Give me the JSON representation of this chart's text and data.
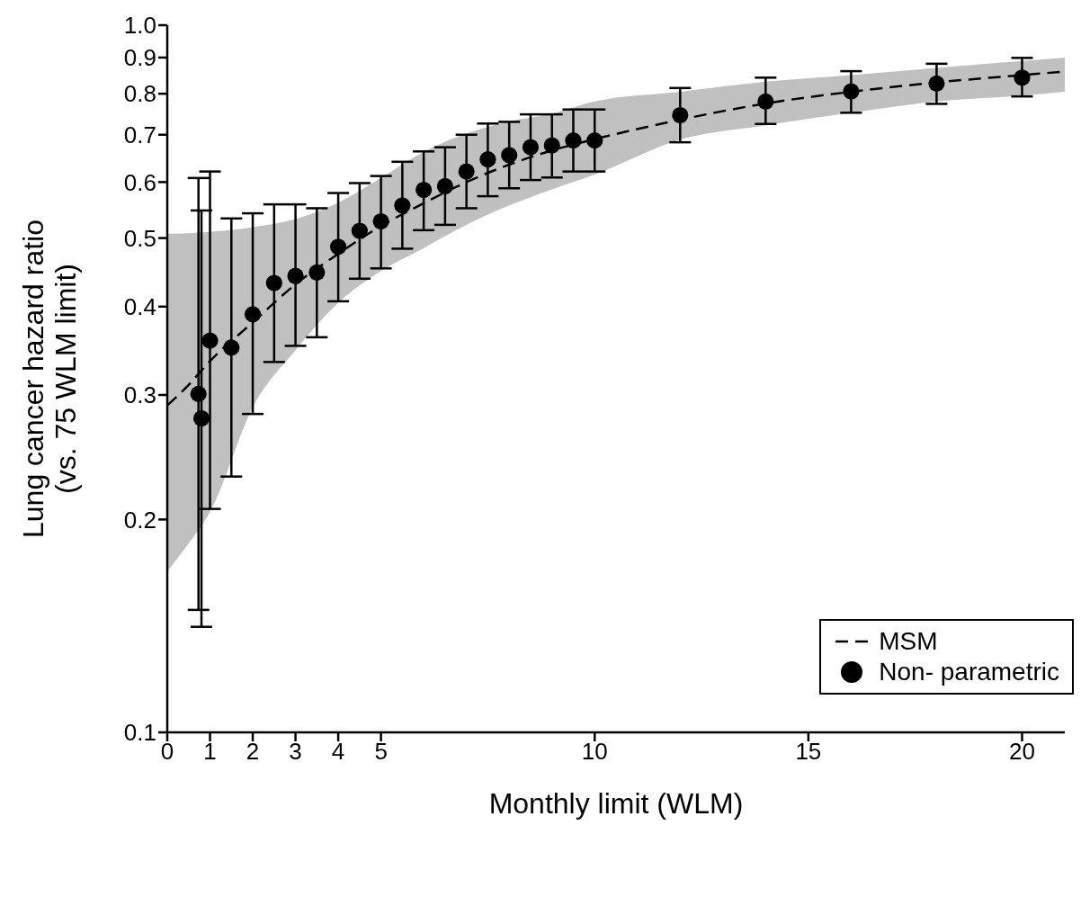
{
  "chart_data": {
    "type": "scatter",
    "xlabel": "Monthly limit (WLM)",
    "ylabel": "Lung cancer hazard ratio\n(vs. 75 WLM limit)",
    "xlim": [
      0,
      21
    ],
    "xticks": [
      0,
      1,
      2,
      3,
      4,
      5,
      10,
      15,
      20
    ],
    "ylim": [
      0.1,
      1
    ],
    "yticks": [
      0.1,
      0.2,
      0.3,
      0.4,
      0.5,
      0.6,
      0.7,
      0.8,
      0.9,
      {
        "value": 1,
        "label": "1.0"
      }
    ],
    "log": "y",
    "grid": false,
    "legend": "bottom right",
    "series": [
      {
        "name": "MSM",
        "type": "line",
        "line_style": "dashed",
        "marker": "none",
        "color": "#000000",
        "x": [
          0,
          0.5,
          1,
          2,
          3,
          4,
          5,
          6,
          7,
          8,
          9,
          10,
          12,
          14,
          16,
          18,
          20,
          21
        ],
        "values": [
          0.29,
          0.31,
          0.335,
          0.38,
          0.43,
          0.475,
          0.52,
          0.56,
          0.6,
          0.635,
          0.665,
          0.69,
          0.735,
          0.775,
          0.805,
          0.83,
          0.85,
          0.86
        ],
        "lower": [
          0.169,
          0.185,
          0.205,
          0.288,
          0.347,
          0.405,
          0.449,
          0.484,
          0.522,
          0.556,
          0.586,
          0.615,
          0.689,
          0.722,
          0.752,
          0.78,
          0.795,
          0.805
        ],
        "upper": [
          0.507,
          0.508,
          0.51,
          0.518,
          0.532,
          0.561,
          0.608,
          0.662,
          0.703,
          0.731,
          0.75,
          0.78,
          0.805,
          0.832,
          0.85,
          0.87,
          0.89,
          0.9
        ]
      },
      {
        "name": "Non- parametric",
        "marker": "circle",
        "color": "#000000",
        "x": [
          0.73,
          0.8,
          1,
          1.5,
          2,
          2.5,
          3,
          3.5,
          4,
          4.5,
          5,
          5.5,
          6,
          6.5,
          7,
          7.5,
          8,
          8.5,
          9,
          9.5,
          10,
          12,
          14,
          16,
          18,
          20
        ],
        "values": [
          0.301,
          0.278,
          0.358,
          0.35,
          0.39,
          0.432,
          0.442,
          0.447,
          0.486,
          0.512,
          0.528,
          0.556,
          0.585,
          0.592,
          0.621,
          0.646,
          0.655,
          0.672,
          0.676,
          0.687,
          0.687,
          0.746,
          0.78,
          0.806,
          0.827,
          0.843
        ],
        "errors": [
          [
            0.149,
            0.608
          ],
          [
            0.141,
            0.547
          ],
          [
            0.207,
            0.621
          ],
          [
            0.23,
            0.533
          ],
          [
            0.282,
            0.542
          ],
          [
            0.334,
            0.558
          ],
          [
            0.352,
            0.558
          ],
          [
            0.362,
            0.551
          ],
          [
            0.407,
            0.579
          ],
          [
            0.438,
            0.598
          ],
          [
            0.453,
            0.612
          ],
          [
            0.483,
            0.641
          ],
          [
            0.513,
            0.663
          ],
          [
            0.522,
            0.672
          ],
          [
            0.551,
            0.7
          ],
          [
            0.573,
            0.726
          ],
          [
            0.588,
            0.73
          ],
          [
            0.604,
            0.748
          ],
          [
            0.609,
            0.748
          ],
          [
            0.621,
            0.76
          ],
          [
            0.621,
            0.76
          ],
          [
            0.683,
            0.815
          ],
          [
            0.725,
            0.843
          ],
          [
            0.752,
            0.861
          ],
          [
            0.774,
            0.882
          ],
          [
            0.793,
            0.899
          ]
        ]
      }
    ]
  }
}
